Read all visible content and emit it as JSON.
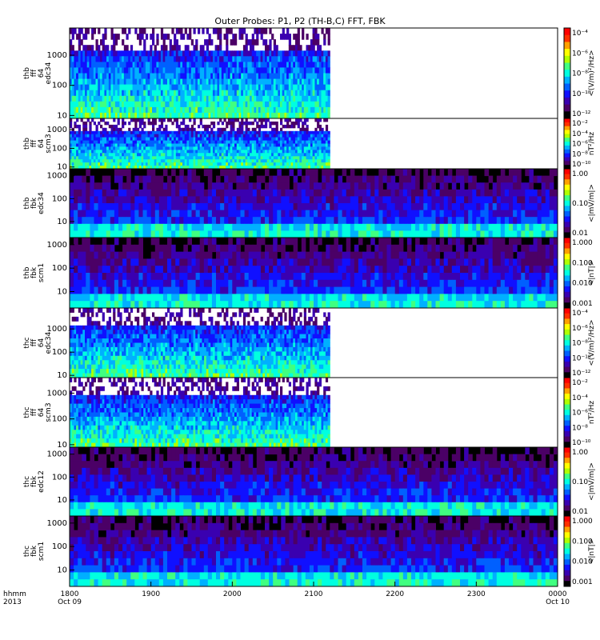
{
  "title": "Outer Probes: P1, P2 (TH-B,C) FFT, FBK",
  "time_axis": {
    "row1_labels": [
      "hhmm",
      "1800",
      "1900",
      "2000",
      "2100",
      "2200",
      "2300",
      "0000"
    ],
    "row2_labels": [
      "2013",
      "Oct 09",
      "Oct 10"
    ],
    "start_hhmm": 1800,
    "end_hhmm": 2400,
    "data_end_hhmm": 2112
  },
  "chart_data": [
    {
      "type": "heatmap",
      "ylabel_lines": [
        "thb",
        "fff",
        "64",
        "edc34"
      ],
      "ytick_labels": [
        "10",
        "100",
        "1000"
      ],
      "ytick_values": [
        10,
        100,
        1000
      ],
      "ylim": [
        8,
        8000
      ],
      "scale": "log",
      "data_until": 2112,
      "colorbar": {
        "unit_label": "<(V/m)²/Hz>",
        "tick_labels": [
          "10⁻⁴",
          "10⁻⁶",
          "10⁻⁸",
          "10⁻¹⁰",
          "10⁻¹²"
        ]
      }
    },
    {
      "type": "heatmap",
      "ylabel_lines": [
        "thb",
        "fff",
        "64",
        "scm3"
      ],
      "ytick_labels": [
        "10",
        "100",
        "1000"
      ],
      "ytick_values": [
        10,
        100,
        1000
      ],
      "ylim": [
        8,
        4000
      ],
      "scale": "log",
      "data_until": 2112,
      "colorbar": {
        "unit_label": "nT²/Hz",
        "tick_labels": [
          "10⁻²",
          "10⁻⁴",
          "10⁻⁶",
          "10⁻⁸",
          "10⁻¹⁰"
        ]
      }
    },
    {
      "type": "heatmap",
      "ylabel_lines": [
        "thb",
        "fbk",
        "edc34"
      ],
      "ytick_labels": [
        "10",
        "100",
        "1000"
      ],
      "ytick_values": [
        10,
        100,
        1000
      ],
      "ylim": [
        2,
        2000
      ],
      "scale": "log",
      "data_until": 2400,
      "colorbar": {
        "unit_label": "<|mV/m|>",
        "tick_labels": [
          "1.00",
          "0.10",
          "0.01"
        ]
      }
    },
    {
      "type": "heatmap",
      "ylabel_lines": [
        "thb",
        "fbk",
        "scm1"
      ],
      "ytick_labels": [
        "10",
        "100",
        "1000"
      ],
      "ytick_values": [
        10,
        100,
        1000
      ],
      "ylim": [
        2,
        2000
      ],
      "scale": "log",
      "data_until": 2400,
      "colorbar": {
        "unit_label": "<|nT|>",
        "tick_labels": [
          "1.000",
          "0.100",
          "0.010",
          "0.001"
        ]
      }
    },
    {
      "type": "heatmap",
      "ylabel_lines": [
        "thc",
        "fff",
        "64",
        "edc34"
      ],
      "ytick_labels": [
        "10",
        "100",
        "1000"
      ],
      "ytick_values": [
        10,
        100,
        1000
      ],
      "ylim": [
        8,
        8000
      ],
      "scale": "log",
      "data_until": 2112,
      "colorbar": {
        "unit_label": "<(V/m)²/Hz>",
        "tick_labels": [
          "10⁻⁴",
          "10⁻⁶",
          "10⁻⁸",
          "10⁻¹⁰",
          "10⁻¹²"
        ]
      }
    },
    {
      "type": "heatmap",
      "ylabel_lines": [
        "thc",
        "fff",
        "64",
        "scm3"
      ],
      "ytick_labels": [
        "10",
        "100",
        "1000"
      ],
      "ytick_values": [
        10,
        100,
        1000
      ],
      "ylim": [
        8,
        4000
      ],
      "scale": "log",
      "data_until": 2112,
      "colorbar": {
        "unit_label": "nT²/Hz",
        "tick_labels": [
          "10⁻²",
          "10⁻⁴",
          "10⁻⁶",
          "10⁻⁸",
          "10⁻¹⁰"
        ]
      }
    },
    {
      "type": "heatmap",
      "ylabel_lines": [
        "thc",
        "fbk",
        "edc12"
      ],
      "ytick_labels": [
        "10",
        "100",
        "1000"
      ],
      "ytick_values": [
        10,
        100,
        1000
      ],
      "ylim": [
        2,
        2000
      ],
      "scale": "log",
      "data_until": 2400,
      "colorbar": {
        "unit_label": "<|mV/m|>",
        "tick_labels": [
          "1.00",
          "0.10",
          "0.01"
        ]
      }
    },
    {
      "type": "heatmap",
      "ylabel_lines": [
        "thc",
        "fbk",
        "scm1"
      ],
      "ytick_labels": [
        "10",
        "100",
        "1000"
      ],
      "ytick_values": [
        10,
        100,
        1000
      ],
      "ylim": [
        2,
        2000
      ],
      "scale": "log",
      "data_until": 2400,
      "colorbar": {
        "unit_label": "<|nT|>",
        "tick_labels": [
          "1.000",
          "0.100",
          "0.010",
          "0.001"
        ]
      }
    }
  ],
  "colormap": [
    "#000000",
    "#4b0066",
    "#3a00b0",
    "#1010ff",
    "#0060ff",
    "#00b0ff",
    "#00ffe0",
    "#40ff80",
    "#b0ff00",
    "#ffff00",
    "#ffa000",
    "#ff3000",
    "#ff0000"
  ]
}
